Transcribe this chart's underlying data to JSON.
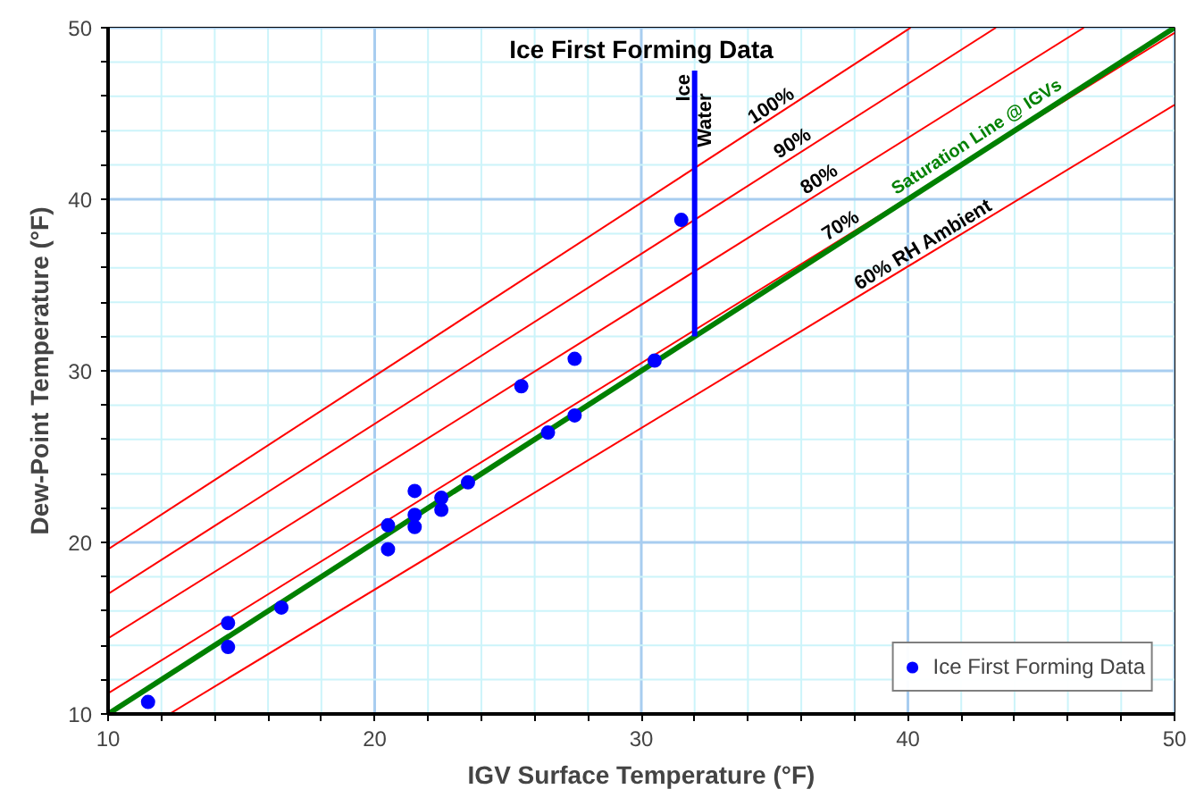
{
  "chart_data": {
    "type": "scatter",
    "title": "Ice First Forming Data",
    "xlabel": "IGV Surface Temperature (°F)",
    "ylabel": "Dew-Point Temperature (°F)",
    "xlim": [
      10,
      50
    ],
    "ylim": [
      10,
      50
    ],
    "xticks": [
      10,
      {
        "value": 12,
        "label": null
      },
      {
        "value": 14,
        "label": null
      },
      {
        "value": 16,
        "label": null
      },
      {
        "value": 18,
        "label": null
      },
      20,
      {
        "value": 22,
        "label": null
      },
      {
        "value": 24,
        "label": null
      },
      {
        "value": 26,
        "label": null
      },
      {
        "value": 28,
        "label": null
      },
      30,
      {
        "value": 32,
        "label": null
      },
      {
        "value": 34,
        "label": null
      },
      {
        "value": 36,
        "label": null
      },
      {
        "value": 38,
        "label": null
      },
      40,
      {
        "value": 42,
        "label": null
      },
      {
        "value": 44,
        "label": null
      },
      {
        "value": 46,
        "label": null
      },
      {
        "value": 48,
        "label": null
      },
      50
    ],
    "yticks": [
      10,
      {
        "value": 12,
        "label": null
      },
      {
        "value": 14,
        "label": null
      },
      {
        "value": 16,
        "label": null
      },
      {
        "value": 18,
        "label": null
      },
      20,
      {
        "value": 22,
        "label": null
      },
      {
        "value": 24,
        "label": null
      },
      {
        "value": 26,
        "label": null
      },
      {
        "value": 28,
        "label": null
      },
      30,
      {
        "value": 32,
        "label": null
      },
      {
        "value": 34,
        "label": null
      },
      {
        "value": 36,
        "label": null
      },
      {
        "value": 38,
        "label": null
      },
      40,
      {
        "value": 42,
        "label": null
      },
      {
        "value": 44,
        "label": null
      },
      {
        "value": 46,
        "label": null
      },
      {
        "value": 48,
        "label": null
      },
      50
    ],
    "grid": true,
    "legend": "bottom right",
    "series": [
      {
        "type": "line",
        "color": "#ff0000",
        "x": [
          10,
          40.1
        ],
        "values": [
          19.6,
          50
        ]
      },
      {
        "type": "line",
        "color": "#ff0000",
        "x": [
          10,
          43.3
        ],
        "values": [
          17.0,
          50
        ]
      },
      {
        "type": "line",
        "color": "#ff0000",
        "x": [
          10,
          46.6
        ],
        "values": [
          14.4,
          50
        ]
      },
      {
        "type": "line",
        "color": "#ff0000",
        "x": [
          10,
          50
        ],
        "values": [
          11.2,
          49.7
        ]
      },
      {
        "type": "line",
        "color": "#ff0000",
        "x": [
          12.3,
          50
        ],
        "values": [
          10,
          45.5
        ]
      },
      {
        "type": "line",
        "name": "Saturation Line @ IGVs",
        "color": "#008000",
        "x": [
          10,
          50
        ],
        "values": [
          10,
          50
        ]
      },
      {
        "type": "line",
        "color": "#0000ff",
        "x": [
          32,
          32
        ],
        "values": [
          32,
          47.5
        ]
      },
      {
        "name": "Ice First Forming Data",
        "color": "#0000ff",
        "marker": "circle",
        "x": [
          11.5,
          14.5,
          14.5,
          16.5,
          20.5,
          20.5,
          21.5,
          21.5,
          21.5,
          22.5,
          22.5,
          23.5,
          25.5,
          26.5,
          27.5,
          27.5,
          30.5,
          31.5
        ],
        "values": [
          10.7,
          15.3,
          13.9,
          16.2,
          21.0,
          19.6,
          23.0,
          21.6,
          20.9,
          22.6,
          21.9,
          23.5,
          29.1,
          26.4,
          27.4,
          30.7,
          30.6,
          38.8
        ]
      }
    ],
    "annotations": [
      {
        "text": "100%",
        "x": 35.1,
        "y": 44.9
      },
      {
        "text": "90%",
        "x": 35.9,
        "y": 42.7
      },
      {
        "text": "80%",
        "x": 36.9,
        "y": 40.6
      },
      {
        "text": "70%",
        "x": 37.7,
        "y": 37.9
      },
      {
        "text": "60% RH Ambient",
        "x": 40.8,
        "y": 36.8
      },
      {
        "text": "Ice",
        "x": 32,
        "y": 46.5
      },
      {
        "text": "Water",
        "x": 32,
        "y": 44.6
      }
    ]
  }
}
